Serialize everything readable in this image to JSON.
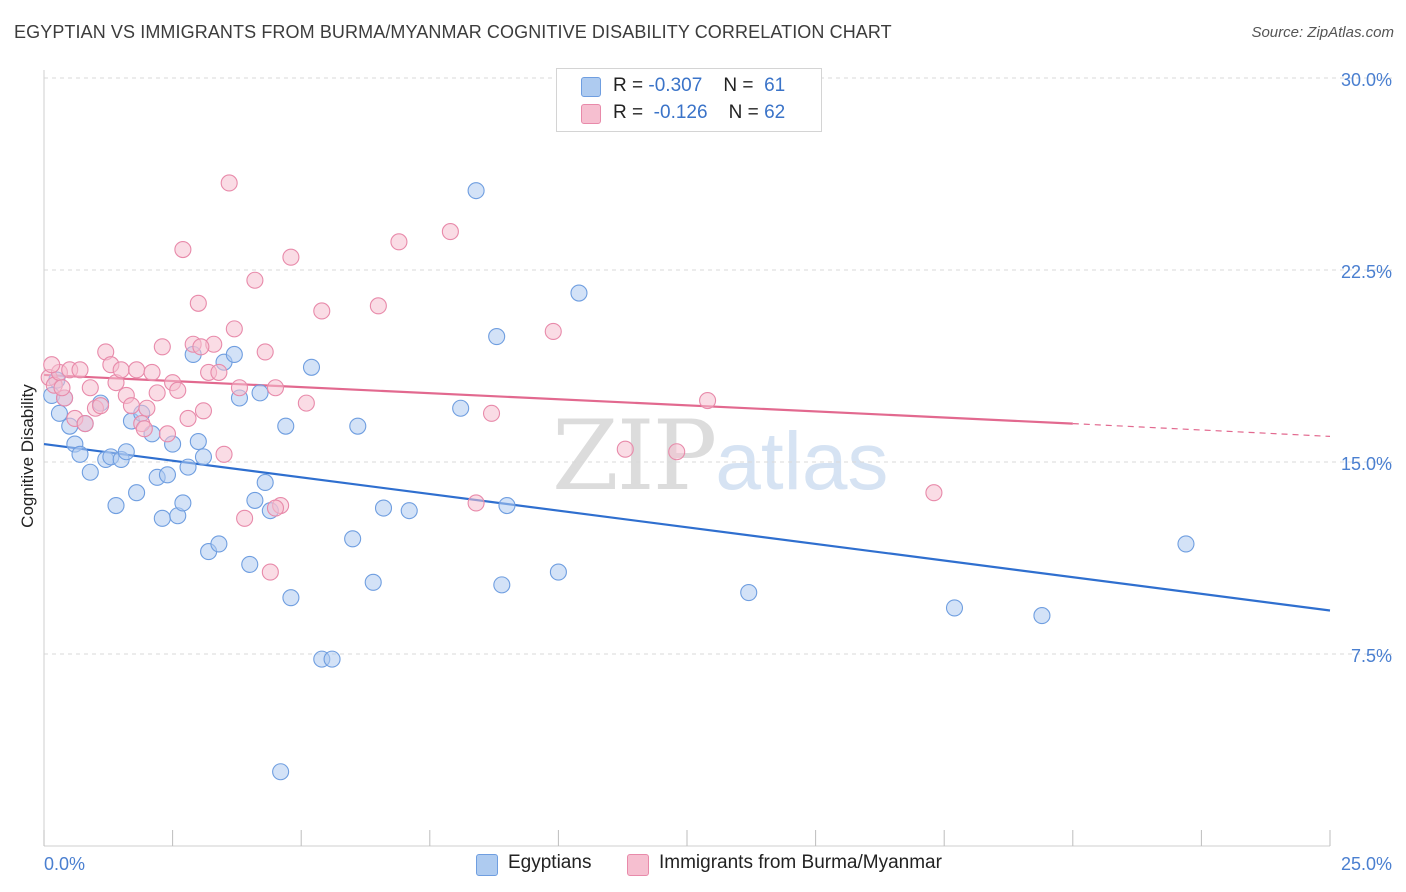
{
  "header": {
    "title": "EGYPTIAN VS IMMIGRANTS FROM BURMA/MYANMAR COGNITIVE DISABILITY CORRELATION CHART",
    "source": "Source: ZipAtlas.com"
  },
  "watermark": {
    "zip": "ZIP",
    "atlas": "atlas"
  },
  "legend": {
    "rows": [
      {
        "r_label": "R =",
        "r_value": "-0.307",
        "n_label": "N =",
        "n_value": "61"
      },
      {
        "r_label": "R =",
        "r_value": "-0.126",
        "n_label": "N =",
        "n_value": "62"
      }
    ]
  },
  "bottom_legend": {
    "items": [
      {
        "label": "Egyptians"
      },
      {
        "label": "Immigrants from Burma/Myanmar"
      }
    ]
  },
  "colors": {
    "blue_fill": "#aecbf0",
    "blue_stroke": "#6f9ee0",
    "blue_line": "#2f6fcf",
    "pink_fill": "#f6bfd0",
    "pink_stroke": "#e88aaa",
    "pink_line": "#e2698f",
    "tick_label": "#4a7fd0",
    "grid": "#d9d9d9"
  },
  "chart_data": {
    "type": "scatter",
    "title": "EGYPTIAN VS IMMIGRANTS FROM BURMA/MYANMAR COGNITIVE DISABILITY CORRELATION CHART",
    "xlabel": "",
    "ylabel": "Cognitive Disability",
    "xlim": [
      0,
      25
    ],
    "ylim": [
      0,
      30
    ],
    "x_tick_labels": [
      "0.0%",
      "25.0%"
    ],
    "y_ticks": [
      7.5,
      15.0,
      22.5,
      30.0
    ],
    "y_tick_labels": [
      "7.5%",
      "15.0%",
      "22.5%",
      "30.0%"
    ],
    "grid": "horizontal dashed",
    "legend_position": "top-center",
    "series": [
      {
        "name": "Egyptians",
        "color": "#6f9ee0",
        "trend": {
          "x": [
            0,
            25
          ],
          "y": [
            15.7,
            9.2
          ]
        },
        "points": [
          [
            0.15,
            17.6
          ],
          [
            0.25,
            18.2
          ],
          [
            0.3,
            16.9
          ],
          [
            0.4,
            17.5
          ],
          [
            0.5,
            16.4
          ],
          [
            0.6,
            15.7
          ],
          [
            0.7,
            15.3
          ],
          [
            0.8,
            16.5
          ],
          [
            0.9,
            14.6
          ],
          [
            1.1,
            17.3
          ],
          [
            1.2,
            15.1
          ],
          [
            1.3,
            15.2
          ],
          [
            1.4,
            13.3
          ],
          [
            1.5,
            15.1
          ],
          [
            1.6,
            15.4
          ],
          [
            1.7,
            16.6
          ],
          [
            1.8,
            13.8
          ],
          [
            1.9,
            16.9
          ],
          [
            2.1,
            16.1
          ],
          [
            2.2,
            14.4
          ],
          [
            2.3,
            12.8
          ],
          [
            2.4,
            14.5
          ],
          [
            2.5,
            15.7
          ],
          [
            2.6,
            12.9
          ],
          [
            2.7,
            13.4
          ],
          [
            2.8,
            14.8
          ],
          [
            2.9,
            19.2
          ],
          [
            3.0,
            15.8
          ],
          [
            3.1,
            15.2
          ],
          [
            3.2,
            11.5
          ],
          [
            3.4,
            11.8
          ],
          [
            3.5,
            18.9
          ],
          [
            3.7,
            19.2
          ],
          [
            3.8,
            17.5
          ],
          [
            4.0,
            11.0
          ],
          [
            4.1,
            13.5
          ],
          [
            4.2,
            17.7
          ],
          [
            4.3,
            14.2
          ],
          [
            4.4,
            13.1
          ],
          [
            4.7,
            16.4
          ],
          [
            4.8,
            9.7
          ],
          [
            5.2,
            18.7
          ],
          [
            5.4,
            7.3
          ],
          [
            5.6,
            7.3
          ],
          [
            6.0,
            12.0
          ],
          [
            6.1,
            16.4
          ],
          [
            6.4,
            10.3
          ],
          [
            6.6,
            13.2
          ],
          [
            7.1,
            13.1
          ],
          [
            8.1,
            17.1
          ],
          [
            8.4,
            25.6
          ],
          [
            8.8,
            19.9
          ],
          [
            8.9,
            10.2
          ],
          [
            9.0,
            13.3
          ],
          [
            10.0,
            10.7
          ],
          [
            10.4,
            21.6
          ],
          [
            13.7,
            9.9
          ],
          [
            17.7,
            9.3
          ],
          [
            19.4,
            9.0
          ],
          [
            22.2,
            11.8
          ],
          [
            4.6,
            2.9
          ]
        ]
      },
      {
        "name": "Immigrants from Burma/Myanmar",
        "color": "#e88aaa",
        "trend": {
          "x": [
            0,
            20
          ],
          "y": [
            18.4,
            16.5
          ]
        },
        "trend_extension": {
          "x": [
            20,
            25
          ],
          "y": [
            16.5,
            16.0
          ]
        },
        "points": [
          [
            0.1,
            18.3
          ],
          [
            0.2,
            18.0
          ],
          [
            0.3,
            18.5
          ],
          [
            0.4,
            17.5
          ],
          [
            0.5,
            18.6
          ],
          [
            0.6,
            16.7
          ],
          [
            0.7,
            18.6
          ],
          [
            0.8,
            16.5
          ],
          [
            0.9,
            17.9
          ],
          [
            1.0,
            17.1
          ],
          [
            1.1,
            17.2
          ],
          [
            1.2,
            19.3
          ],
          [
            1.3,
            18.8
          ],
          [
            1.4,
            18.1
          ],
          [
            1.5,
            18.6
          ],
          [
            1.6,
            17.6
          ],
          [
            1.7,
            17.2
          ],
          [
            1.8,
            18.6
          ],
          [
            1.9,
            16.5
          ],
          [
            2.0,
            17.1
          ],
          [
            2.1,
            18.5
          ],
          [
            2.2,
            17.7
          ],
          [
            2.3,
            19.5
          ],
          [
            2.4,
            16.1
          ],
          [
            2.5,
            18.1
          ],
          [
            2.6,
            17.8
          ],
          [
            2.7,
            23.3
          ],
          [
            2.8,
            16.7
          ],
          [
            2.9,
            19.6
          ],
          [
            3.0,
            21.2
          ],
          [
            3.1,
            17.0
          ],
          [
            3.2,
            18.5
          ],
          [
            3.3,
            19.6
          ],
          [
            3.4,
            18.5
          ],
          [
            3.5,
            15.3
          ],
          [
            3.6,
            25.9
          ],
          [
            3.7,
            20.2
          ],
          [
            3.8,
            17.9
          ],
          [
            3.9,
            12.8
          ],
          [
            4.1,
            22.1
          ],
          [
            4.3,
            19.3
          ],
          [
            4.4,
            10.7
          ],
          [
            4.5,
            17.9
          ],
          [
            4.6,
            13.3
          ],
          [
            4.8,
            23.0
          ],
          [
            5.1,
            17.3
          ],
          [
            5.4,
            20.9
          ],
          [
            6.5,
            21.1
          ],
          [
            6.9,
            23.6
          ],
          [
            7.9,
            24.0
          ],
          [
            8.4,
            13.4
          ],
          [
            8.7,
            16.9
          ],
          [
            9.9,
            20.1
          ],
          [
            11.3,
            15.5
          ],
          [
            12.3,
            15.4
          ],
          [
            12.9,
            17.4
          ],
          [
            17.3,
            13.8
          ],
          [
            0.15,
            18.8
          ],
          [
            0.35,
            17.9
          ],
          [
            1.95,
            16.3
          ],
          [
            3.05,
            19.5
          ],
          [
            4.5,
            13.2
          ]
        ]
      }
    ]
  }
}
